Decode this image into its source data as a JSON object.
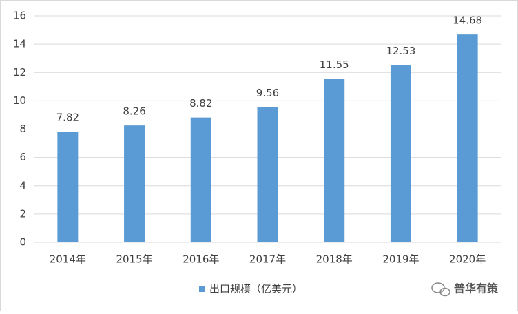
{
  "chart_data": {
    "type": "bar",
    "categories": [
      "2014年",
      "2015年",
      "2016年",
      "2017年",
      "2018年",
      "2019年",
      "2020年"
    ],
    "series": [
      {
        "name": "出口规模（亿美元）",
        "color": "#5b9bd5",
        "values": [
          7.82,
          8.26,
          8.82,
          9.56,
          11.55,
          12.53,
          14.68
        ]
      }
    ],
    "ylim": [
      0,
      16
    ],
    "yticks": [
      0,
      2,
      4,
      6,
      8,
      10,
      12,
      14,
      16
    ],
    "grid": true,
    "legend": "bottom",
    "watermark": "普华有策"
  }
}
